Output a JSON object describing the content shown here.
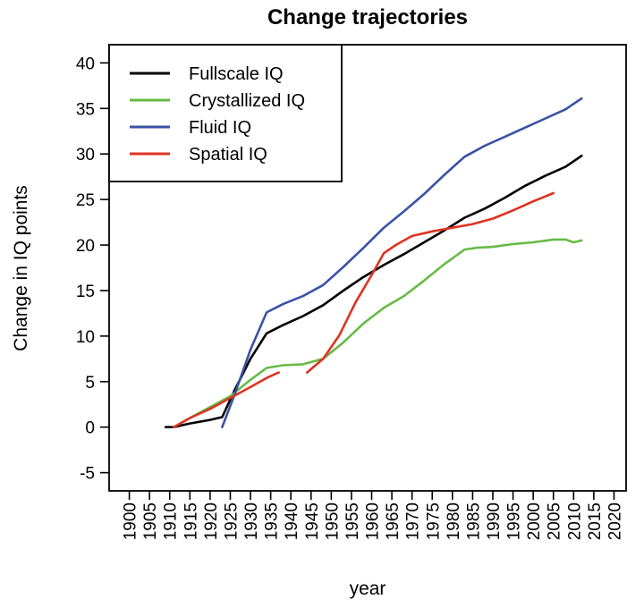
{
  "chart_data": {
    "type": "line",
    "title": "Change trajectories",
    "xlabel": "year",
    "ylabel": "Change in IQ points",
    "xlim": [
      1895,
      2023
    ],
    "ylim": [
      -7,
      42
    ],
    "x_ticks": [
      1900,
      1905,
      1910,
      1915,
      1920,
      1925,
      1930,
      1935,
      1940,
      1945,
      1950,
      1955,
      1960,
      1965,
      1970,
      1975,
      1980,
      1985,
      1990,
      1995,
      2000,
      2005,
      2010,
      2015,
      2020
    ],
    "y_ticks": [
      -5,
      0,
      5,
      10,
      15,
      20,
      25,
      30,
      35,
      40
    ],
    "grid": false,
    "legend_position": "top-left",
    "series": [
      {
        "name": "Fullscale IQ",
        "color": "#000000",
        "segments": [
          [
            [
              1909,
              0
            ],
            [
              1911,
              0
            ],
            [
              1915,
              0.4
            ],
            [
              1920,
              0.8
            ],
            [
              1923,
              1.1
            ],
            [
              1926,
              4
            ],
            [
              1930,
              7.5
            ],
            [
              1934,
              10.3
            ],
            [
              1938,
              11.2
            ],
            [
              1943,
              12.2
            ],
            [
              1948,
              13.4
            ],
            [
              1953,
              15
            ],
            [
              1958,
              16.5
            ],
            [
              1963,
              17.8
            ],
            [
              1968,
              19
            ],
            [
              1973,
              20.3
            ],
            [
              1978,
              21.6
            ],
            [
              1983,
              23
            ],
            [
              1988,
              24
            ],
            [
              1993,
              25.2
            ],
            [
              1998,
              26.5
            ],
            [
              2003,
              27.6
            ],
            [
              2008,
              28.6
            ],
            [
              2012,
              29.8
            ]
          ]
        ]
      },
      {
        "name": "Crystallized IQ",
        "color": "#66bb44",
        "segments": [
          [
            [
              1911,
              0
            ],
            [
              1915,
              1
            ],
            [
              1920,
              2.2
            ],
            [
              1925,
              3.4
            ],
            [
              1930,
              5.2
            ],
            [
              1934,
              6.5
            ],
            [
              1938,
              6.8
            ],
            [
              1943,
              6.9
            ],
            [
              1948,
              7.5
            ],
            [
              1953,
              9.3
            ],
            [
              1958,
              11.4
            ],
            [
              1963,
              13.1
            ],
            [
              1968,
              14.4
            ],
            [
              1973,
              16.1
            ],
            [
              1978,
              17.9
            ],
            [
              1983,
              19.5
            ],
            [
              1986,
              19.7
            ],
            [
              1990,
              19.8
            ],
            [
              1995,
              20.1
            ],
            [
              2000,
              20.3
            ],
            [
              2005,
              20.6
            ],
            [
              2008,
              20.6
            ],
            [
              2010,
              20.3
            ],
            [
              2012,
              20.5
            ]
          ]
        ]
      },
      {
        "name": "Fluid IQ",
        "color": "#3a52a6",
        "segments": [
          [
            [
              1923,
              0
            ],
            [
              1926,
              3.5
            ],
            [
              1930,
              8.5
            ],
            [
              1934,
              12.6
            ],
            [
              1938,
              13.5
            ],
            [
              1943,
              14.4
            ],
            [
              1948,
              15.6
            ],
            [
              1953,
              17.6
            ],
            [
              1958,
              19.7
            ],
            [
              1963,
              21.9
            ],
            [
              1968,
              23.7
            ],
            [
              1973,
              25.6
            ],
            [
              1978,
              27.7
            ],
            [
              1983,
              29.7
            ],
            [
              1988,
              30.9
            ],
            [
              1993,
              31.9
            ],
            [
              1998,
              32.9
            ],
            [
              2003,
              33.9
            ],
            [
              2008,
              34.9
            ],
            [
              2012,
              36.1
            ]
          ]
        ]
      },
      {
        "name": "Spatial IQ",
        "color": "#dd3322",
        "segments": [
          [
            [
              1911,
              0
            ],
            [
              1915,
              1
            ],
            [
              1920,
              2
            ],
            [
              1925,
              3.2
            ],
            [
              1930,
              4.4
            ],
            [
              1934,
              5.4
            ],
            [
              1937,
              6
            ]
          ],
          [
            [
              1944,
              6
            ],
            [
              1948,
              7.5
            ],
            [
              1952,
              10.1
            ],
            [
              1956,
              13.7
            ],
            [
              1960,
              16.7
            ],
            [
              1963,
              19.1
            ],
            [
              1966,
              20
            ],
            [
              1970,
              21
            ],
            [
              1975,
              21.5
            ],
            [
              1980,
              21.9
            ],
            [
              1985,
              22.3
            ],
            [
              1990,
              22.9
            ],
            [
              1995,
              23.8
            ],
            [
              2000,
              24.8
            ],
            [
              2005,
              25.7
            ]
          ]
        ]
      }
    ]
  }
}
